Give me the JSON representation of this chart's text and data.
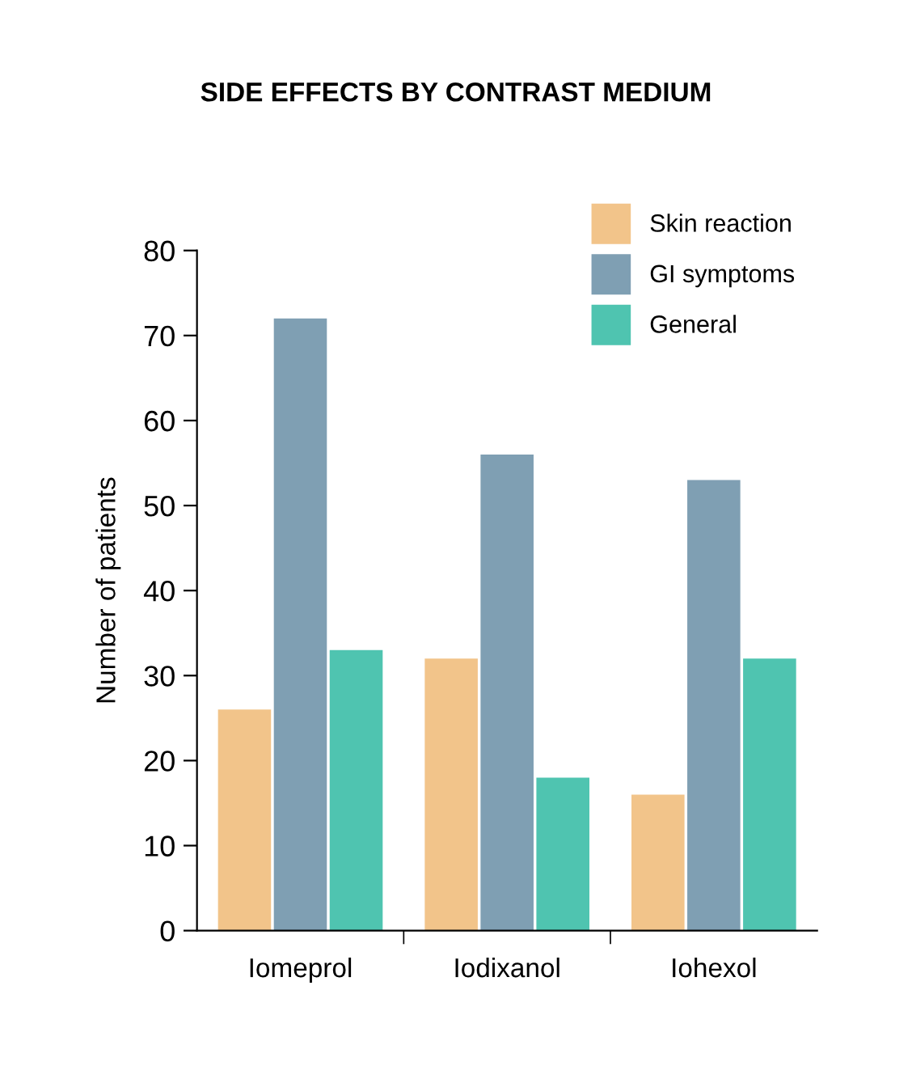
{
  "chart_data": {
    "type": "bar",
    "title": "SIDE EFFECTS BY CONTRAST MEDIUM",
    "ylabel": "Number of patients",
    "categories": [
      "Iomeprol",
      "Iodixanol",
      "Iohexol"
    ],
    "series": [
      {
        "name": "Skin reaction",
        "color": "#f2c48a",
        "values": [
          26,
          32,
          16
        ]
      },
      {
        "name": "GI symptoms",
        "color": "#7f9fb3",
        "values": [
          72,
          56,
          53
        ]
      },
      {
        "name": "General",
        "color": "#4fc4b0",
        "values": [
          33,
          18,
          32
        ]
      }
    ],
    "ylim": [
      0,
      80
    ],
    "yticks": [
      0,
      10,
      20,
      30,
      40,
      50,
      60,
      70,
      80
    ],
    "grid": false,
    "legend": "top right"
  }
}
